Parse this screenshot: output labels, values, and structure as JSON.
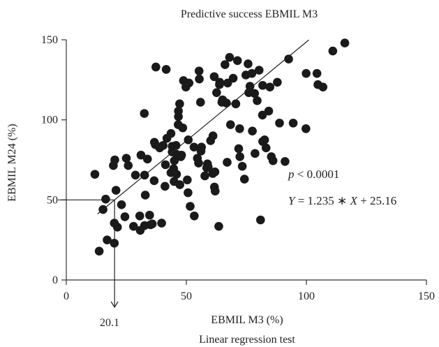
{
  "chart_data": {
    "type": "scatter",
    "title": "Predictive success EBMIL M3",
    "xlabel": "EBMIL M3 (%)",
    "ylabel": "EBMIL M24 (%)",
    "footer": "Linear regression test",
    "xlim": [
      0,
      150
    ],
    "ylim": [
      0,
      150
    ],
    "xticks": [
      0,
      50,
      100,
      150
    ],
    "yticks": [
      0,
      50,
      100,
      150
    ],
    "annotation_p": "p < 0.0001",
    "annotation_p_symbol": "p",
    "annotation_p_rest": " < 0.0001",
    "annotation_eq_symbol_y": "Y",
    "annotation_eq_mid": " = 1.235 ∗ ",
    "annotation_eq_symbol_x": "X",
    "annotation_eq_rest": " + 25.16",
    "regression": {
      "slope": 1.235,
      "intercept": 25.16,
      "x_range": [
        13,
        101
      ]
    },
    "marker_x_label": "20.1",
    "marker": {
      "x": 20.1,
      "y": 50
    },
    "point_color": "#1a1a1a",
    "points": [
      [
        11.9,
        66.0
      ],
      [
        13.7,
        18.0
      ],
      [
        15.3,
        44.0
      ],
      [
        16.4,
        50.5
      ],
      [
        17.0,
        25.0
      ],
      [
        19.6,
        71.5
      ],
      [
        20.2,
        75.0
      ],
      [
        20.0,
        35.5
      ],
      [
        20.0,
        23.0
      ],
      [
        21.3,
        33.0
      ],
      [
        20.7,
        56.0
      ],
      [
        23.0,
        47.0
      ],
      [
        24.4,
        39.5
      ],
      [
        25.0,
        76.0
      ],
      [
        25.8,
        71.5
      ],
      [
        28.0,
        33.5
      ],
      [
        28.8,
        65.5
      ],
      [
        30.6,
        40.0
      ],
      [
        30.8,
        31.0
      ],
      [
        31.1,
        78.0
      ],
      [
        32.5,
        104.0
      ],
      [
        32.6,
        34.0
      ],
      [
        32.6,
        65.5
      ],
      [
        32.9,
        53.0
      ],
      [
        33.8,
        75.5
      ],
      [
        34.7,
        40.5
      ],
      [
        35.1,
        34.5
      ],
      [
        35.8,
        35.0
      ],
      [
        36.6,
        62.0
      ],
      [
        36.7,
        86.0
      ],
      [
        37.1,
        84.5
      ],
      [
        37.3,
        133.0
      ],
      [
        38.9,
        82.5
      ],
      [
        39.7,
        35.5
      ],
      [
        40.3,
        84.0
      ],
      [
        41.1,
        58.5
      ],
      [
        41.3,
        72.0
      ],
      [
        41.6,
        131.5
      ],
      [
        41.9,
        88.5
      ],
      [
        43.6,
        91.5
      ],
      [
        43.6,
        67.0
      ],
      [
        44.1,
        80.0
      ],
      [
        44.1,
        83.5
      ],
      [
        44.7,
        69.5
      ],
      [
        44.9,
        61.5
      ],
      [
        45.0,
        74.5
      ],
      [
        45.7,
        84.0
      ],
      [
        45.9,
        66.0
      ],
      [
        46.0,
        78.5
      ],
      [
        46.6,
        97.0
      ],
      [
        46.7,
        102.0
      ],
      [
        46.7,
        105.5
      ],
      [
        47.2,
        110.0
      ],
      [
        47.3,
        59.5
      ],
      [
        47.7,
        77.0
      ],
      [
        48.0,
        78.0
      ],
      [
        48.5,
        95.0
      ],
      [
        48.8,
        124.5
      ],
      [
        49.8,
        120.5
      ],
      [
        50.4,
        62.5
      ],
      [
        50.8,
        87.5
      ],
      [
        50.7,
        54.5
      ],
      [
        51.1,
        123.0
      ],
      [
        51.6,
        46.0
      ],
      [
        53.3,
        40.0
      ],
      [
        53.2,
        83.0
      ],
      [
        54.6,
        76.0
      ],
      [
        55.1,
        73.0
      ],
      [
        55.3,
        130.5
      ],
      [
        55.4,
        125.5
      ],
      [
        55.9,
        111.0
      ],
      [
        56.1,
        80.5
      ],
      [
        56.3,
        83.0
      ],
      [
        57.7,
        65.0
      ],
      [
        58.5,
        70.0
      ],
      [
        58.8,
        72.5
      ],
      [
        59.1,
        70.5
      ],
      [
        60.1,
        87.0
      ],
      [
        61.0,
        66.5
      ],
      [
        61.1,
        90.0
      ],
      [
        61.6,
        127.0
      ],
      [
        61.7,
        58.0
      ],
      [
        61.9,
        67.5
      ],
      [
        62.0,
        55.5
      ],
      [
        62.6,
        117.0
      ],
      [
        63.5,
        33.5
      ],
      [
        63.8,
        122.0
      ],
      [
        63.9,
        123.5
      ],
      [
        64.8,
        111.0
      ],
      [
        65.1,
        112.5
      ],
      [
        66.1,
        134.5
      ],
      [
        66.7,
        110.5
      ],
      [
        67.0,
        73.5
      ],
      [
        67.2,
        123.0
      ],
      [
        68.0,
        139.0
      ],
      [
        68.4,
        97.0
      ],
      [
        69.5,
        126.0
      ],
      [
        70.6,
        110.0
      ],
      [
        71.3,
        137.0
      ],
      [
        71.8,
        82.0
      ],
      [
        72.2,
        94.5
      ],
      [
        72.3,
        77.0
      ],
      [
        73.3,
        71.0
      ],
      [
        74.2,
        63.0
      ],
      [
        74.8,
        128.0
      ],
      [
        75.7,
        135.0
      ],
      [
        76.0,
        117.0
      ],
      [
        76.5,
        121.0
      ],
      [
        77.3,
        129.0
      ],
      [
        77.5,
        93.0
      ],
      [
        78.4,
        116.5
      ],
      [
        78.6,
        79.0
      ],
      [
        79.5,
        112.0
      ],
      [
        80.3,
        131.0
      ],
      [
        80.9,
        37.5
      ],
      [
        81.7,
        103.0
      ],
      [
        81.8,
        121.5
      ],
      [
        81.8,
        86.5
      ],
      [
        82.6,
        87.5
      ],
      [
        83.2,
        82.5
      ],
      [
        84.3,
        105.5
      ],
      [
        84.8,
        120.5
      ],
      [
        85.4,
        77.0
      ],
      [
        86.1,
        74.5
      ],
      [
        87.9,
        123.5
      ],
      [
        88.8,
        98.0
      ],
      [
        91.1,
        74.0
      ],
      [
        92.6,
        138.0
      ],
      [
        94.5,
        98.0
      ],
      [
        99.9,
        129.0
      ],
      [
        99.8,
        94.5
      ],
      [
        104.4,
        129.0
      ],
      [
        104.8,
        122.0
      ],
      [
        106.9,
        120.5
      ],
      [
        111.0,
        143.0
      ],
      [
        116.0,
        148.0
      ]
    ]
  }
}
